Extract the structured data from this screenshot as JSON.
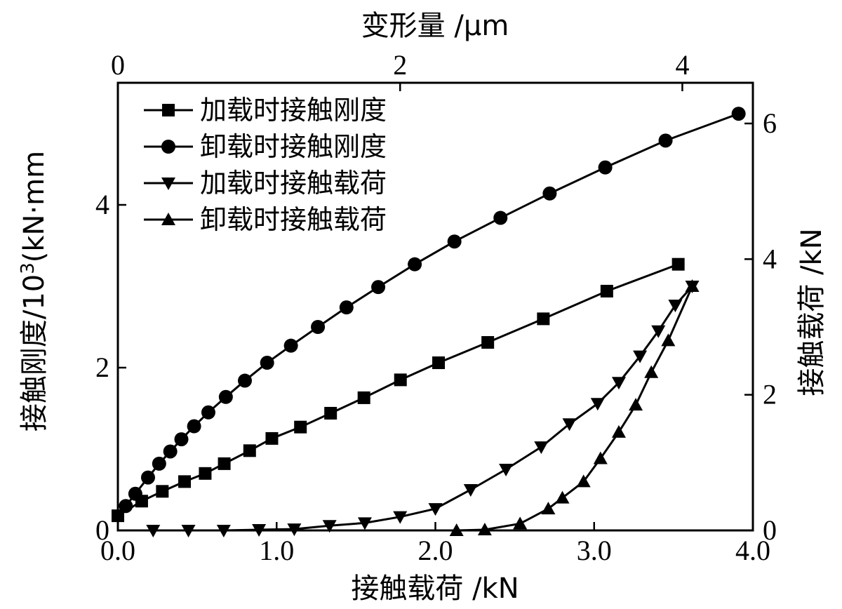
{
  "chart_data": {
    "type": "line",
    "x_axis": {
      "label": "接触载荷 /kN",
      "range": [
        0,
        4.0
      ],
      "ticks": [
        0,
        1.0,
        2.0,
        3.0,
        4.0
      ],
      "tick_labels": [
        "0.0",
        "1.0",
        "2.0",
        "3.0",
        "4.0"
      ]
    },
    "x2_axis": {
      "label": "变形量 /μm",
      "range": [
        0,
        4.5
      ],
      "ticks": [
        0,
        2,
        4
      ],
      "tick_labels": [
        "0",
        "2",
        "4"
      ]
    },
    "y_axis": {
      "label_main": "接触刚度/10",
      "label_sup": "3",
      "label_tail": "(kN·mm",
      "range": [
        0,
        5.5
      ],
      "ticks": [
        0,
        2,
        4
      ],
      "tick_labels": [
        "0",
        "2",
        "4"
      ]
    },
    "y2_axis": {
      "label": "接触载荷 /kN",
      "range": [
        0,
        6.6
      ],
      "ticks": [
        0,
        2,
        4,
        6
      ],
      "tick_labels": [
        "0",
        "2",
        "4",
        "6"
      ]
    },
    "legend_position": "top-left",
    "series": [
      {
        "name": "加载时接触刚度",
        "marker": "square",
        "axes": "bottom-left",
        "x": [
          0.0,
          0.15,
          0.28,
          0.42,
          0.55,
          0.67,
          0.83,
          0.97,
          1.15,
          1.34,
          1.55,
          1.78,
          2.02,
          2.33,
          2.68,
          3.08,
          3.53
        ],
        "y": [
          0.18,
          0.36,
          0.48,
          0.6,
          0.7,
          0.82,
          0.98,
          1.13,
          1.27,
          1.44,
          1.63,
          1.85,
          2.06,
          2.31,
          2.6,
          2.94,
          3.27
        ]
      },
      {
        "name": "卸载时接触刚度",
        "marker": "circle",
        "axes": "bottom-left",
        "x": [
          0.05,
          0.11,
          0.19,
          0.26,
          0.33,
          0.4,
          0.48,
          0.57,
          0.68,
          0.8,
          0.94,
          1.09,
          1.26,
          1.44,
          1.64,
          1.87,
          2.12,
          2.41,
          2.72,
          3.07,
          3.45,
          3.91
        ],
        "y": [
          0.3,
          0.45,
          0.65,
          0.82,
          0.97,
          1.12,
          1.28,
          1.45,
          1.64,
          1.84,
          2.06,
          2.27,
          2.5,
          2.74,
          2.99,
          3.27,
          3.55,
          3.84,
          4.14,
          4.46,
          4.79,
          5.12
        ]
      },
      {
        "name": "加载时接触载荷",
        "marker": "triangle-down",
        "axes": "top-right",
        "x": [
          0.25,
          0.5,
          0.75,
          1.0,
          1.25,
          1.5,
          1.75,
          2.0,
          2.25,
          2.5,
          2.75,
          3.0,
          3.2,
          3.4,
          3.55,
          3.7,
          3.83,
          3.95,
          4.07
        ],
        "y": [
          0.0,
          0.0,
          0.0,
          0.01,
          0.02,
          0.07,
          0.11,
          0.2,
          0.32,
          0.6,
          0.9,
          1.23,
          1.57,
          1.87,
          2.18,
          2.57,
          2.94,
          3.32,
          3.6
        ]
      },
      {
        "name": "卸载时接触载荷",
        "marker": "triangle-up",
        "axes": "top-right",
        "x": [
          2.4,
          2.6,
          2.85,
          3.05,
          3.15,
          3.3,
          3.42,
          3.55,
          3.67,
          3.78,
          3.9,
          4.07
        ],
        "y": [
          0.0,
          0.01,
          0.1,
          0.32,
          0.48,
          0.72,
          1.06,
          1.45,
          1.85,
          2.33,
          2.8,
          3.6
        ]
      }
    ]
  }
}
